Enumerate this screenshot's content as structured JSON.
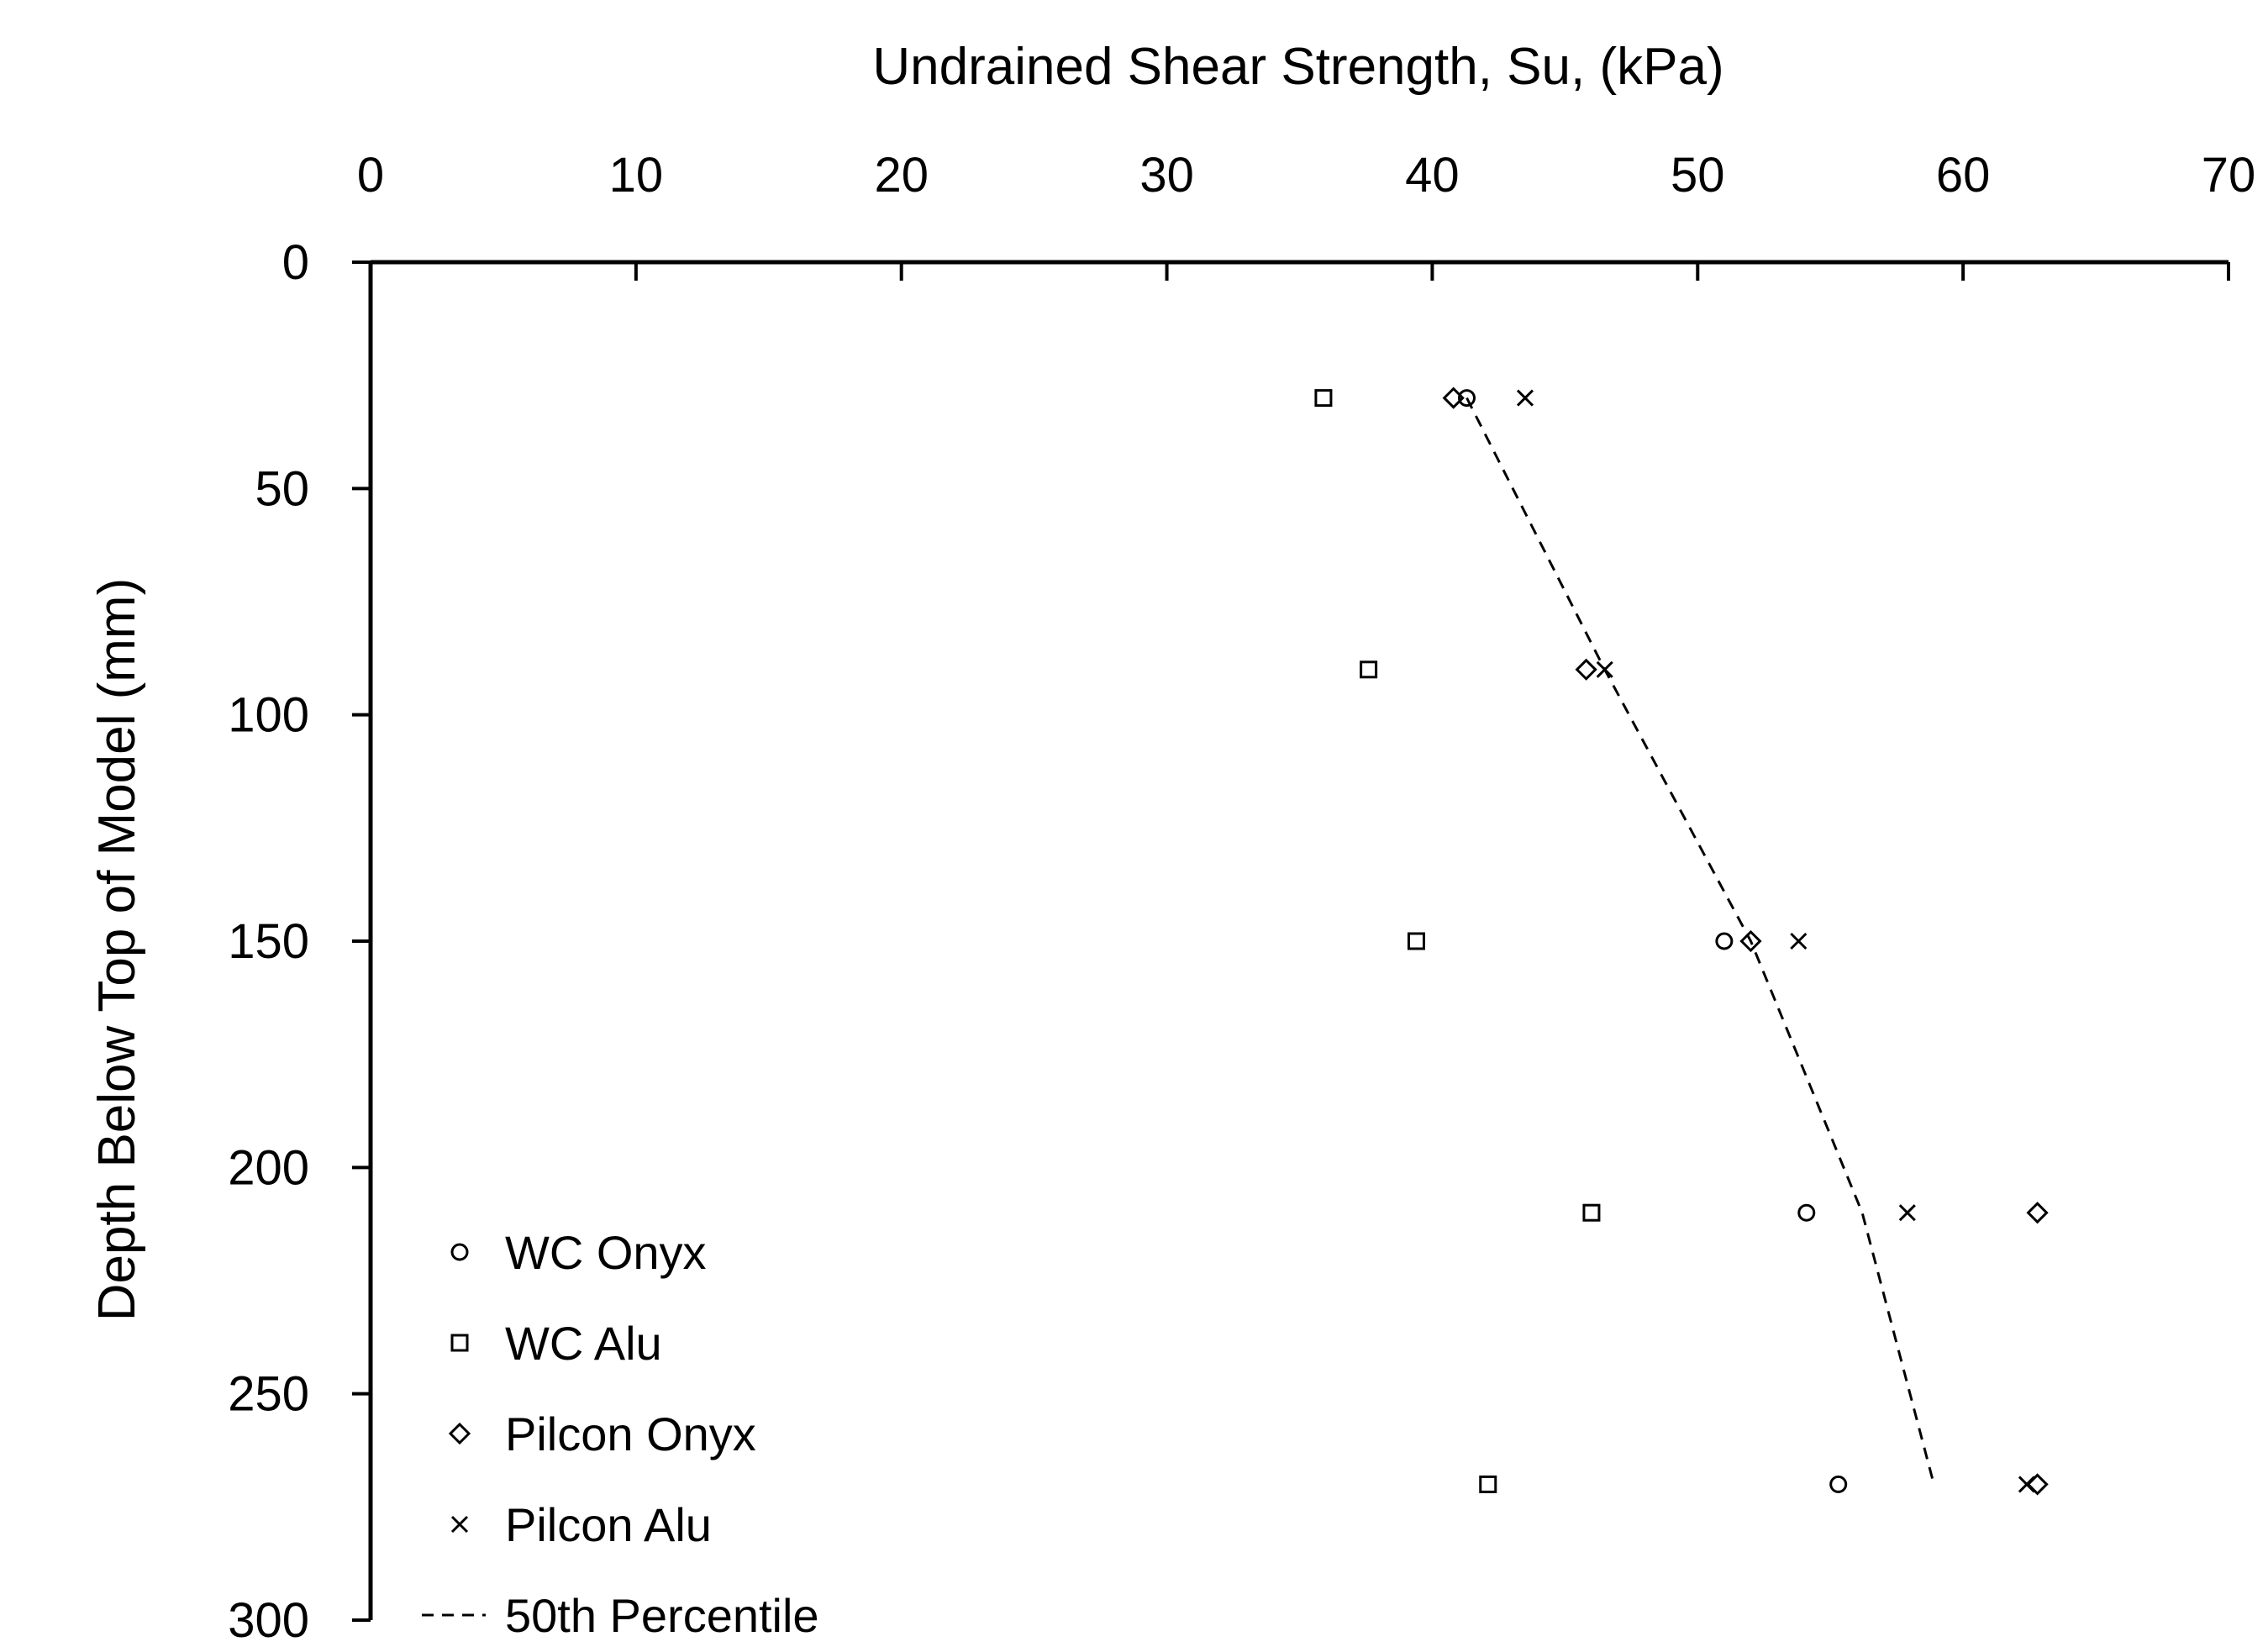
{
  "chart_data": {
    "type": "scatter",
    "xlabel": "Undrained Shear Strength, Su, (kPa)",
    "ylabel": "Depth Below Top of Model (mm)",
    "x_axis_position": "top",
    "y_axis_inverted": true,
    "xlim": [
      0,
      70
    ],
    "ylim": [
      0,
      300
    ],
    "xticks": [
      "0",
      "10",
      "20",
      "30",
      "40",
      "50",
      "60",
      "70"
    ],
    "yticks": [
      "0",
      "50",
      "100",
      "150",
      "200",
      "250",
      "300"
    ],
    "grid": false,
    "legend_position": "bottom-left",
    "series": [
      {
        "name": "WC Onyx",
        "marker": "circle",
        "points": [
          [
            41.3,
            30
          ],
          [
            51.0,
            150
          ],
          [
            54.1,
            210
          ],
          [
            55.3,
            270
          ]
        ]
      },
      {
        "name": "WC Alu",
        "marker": "square",
        "points": [
          [
            35.9,
            30
          ],
          [
            37.6,
            90
          ],
          [
            39.4,
            150
          ],
          [
            46.0,
            210
          ],
          [
            42.1,
            270
          ]
        ]
      },
      {
        "name": "Pilcon Onyx",
        "marker": "diamond",
        "points": [
          [
            40.8,
            30
          ],
          [
            45.8,
            90
          ],
          [
            52.0,
            150
          ],
          [
            62.8,
            210
          ],
          [
            62.8,
            270
          ]
        ]
      },
      {
        "name": "Pilcon Alu",
        "marker": "cross",
        "points": [
          [
            43.5,
            30
          ],
          [
            46.5,
            90
          ],
          [
            53.8,
            150
          ],
          [
            57.9,
            210
          ],
          [
            62.4,
            270
          ]
        ]
      },
      {
        "name": "50th Percentile",
        "marker": "dashed-line",
        "points": [
          [
            41.3,
            30
          ],
          [
            46.5,
            90
          ],
          [
            52.0,
            150
          ],
          [
            56.2,
            210
          ],
          [
            58.9,
            270
          ]
        ]
      }
    ]
  }
}
